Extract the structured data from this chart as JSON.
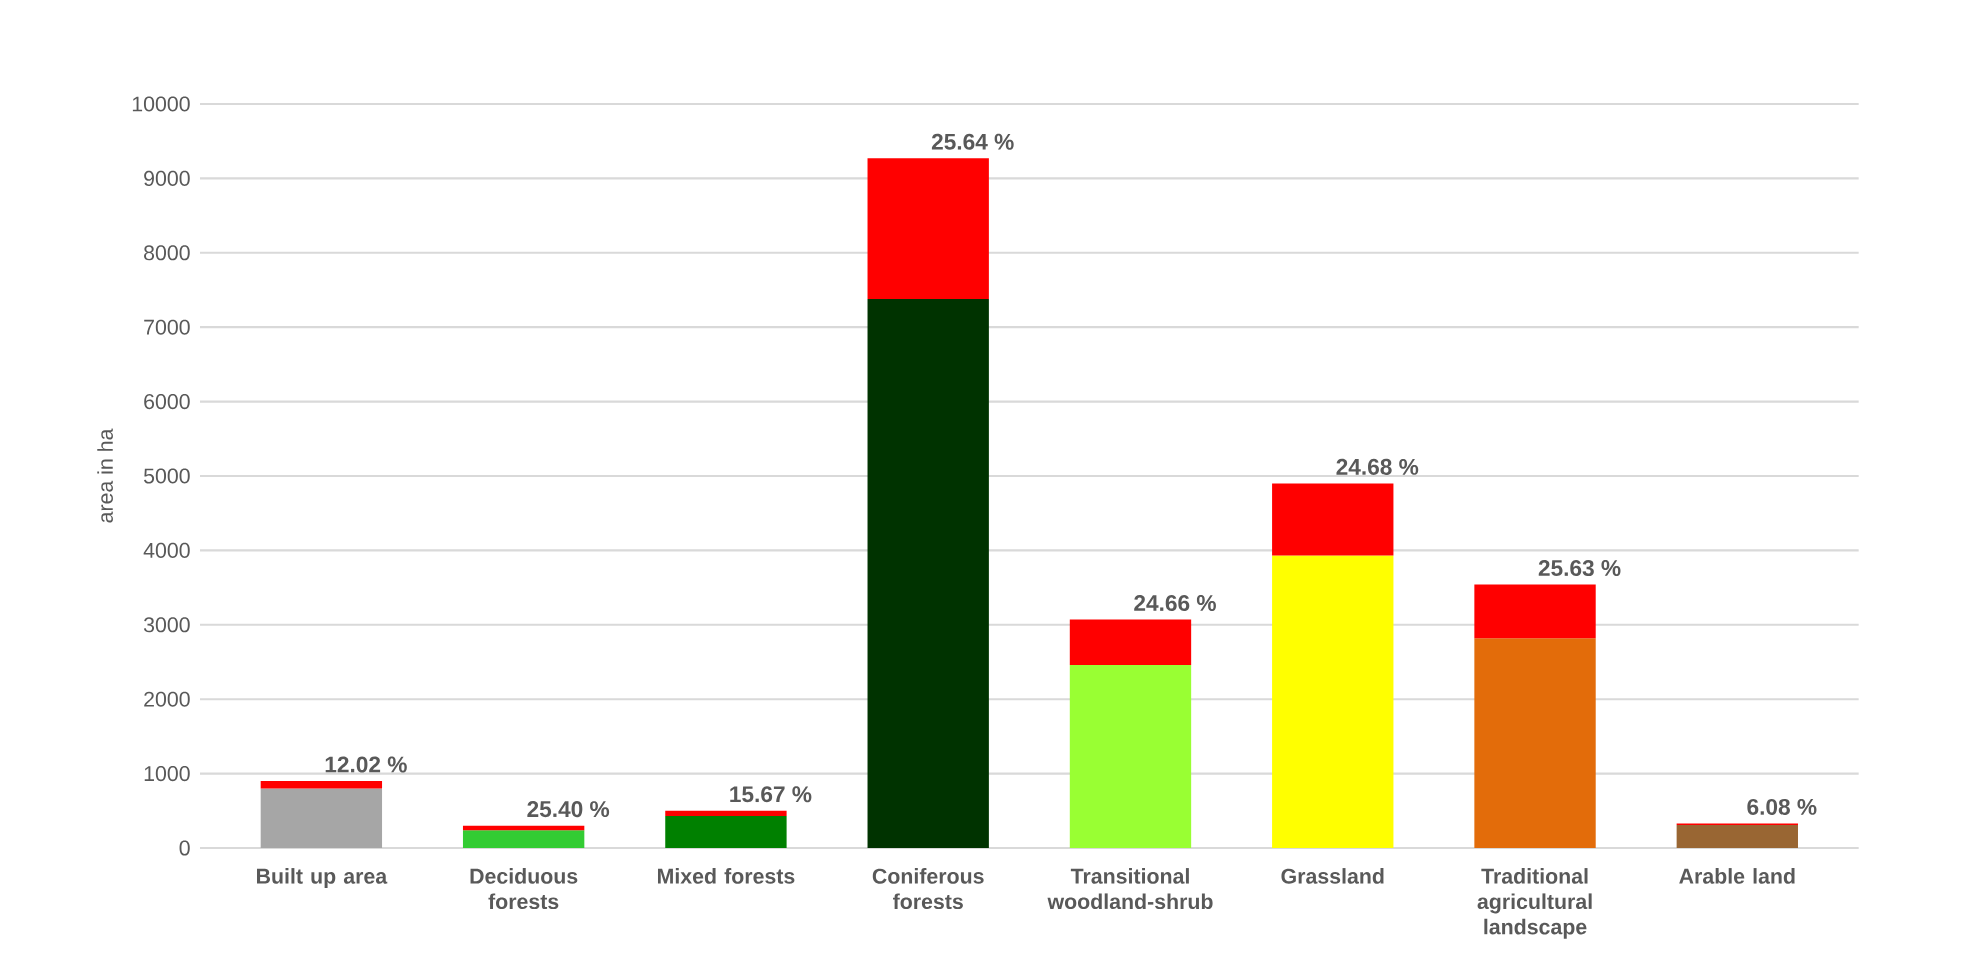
{
  "chart_data": {
    "type": "bar",
    "stacked": true,
    "ylabel": "area in ha",
    "categories": [
      "Built up area",
      "Deciduous forests",
      "Mixed forests",
      "Coniferous forests",
      "Transitional woodland-shrub",
      "Grassland",
      "Traditional agricultural landscape",
      "Arable land"
    ],
    "series": [
      {
        "colors": [
          "#a6a6a6",
          "#33cc33",
          "#008000",
          "#003300",
          "#99ff33",
          "#ffff00",
          "#e36c0a",
          "#996633"
        ],
        "values": [
          800,
          240,
          430,
          7380,
          2460,
          3930,
          2820,
          310
        ]
      },
      {
        "color": "#ff0000",
        "values": [
          100,
          60,
          70,
          1890,
          610,
          970,
          720,
          20
        ]
      }
    ],
    "annotations": [
      {
        "text": "12.02 %",
        "x": "Built up area",
        "y": 900
      },
      {
        "text": "25.40 %",
        "x": "Deciduous forests",
        "y": 300
      },
      {
        "text": "15.67 %",
        "x": "Mixed forests",
        "y": 500
      },
      {
        "text": "25.64 %",
        "x": "Coniferous forests",
        "y": 9270
      },
      {
        "text": "24.66 %",
        "x": "Transitional woodland-shrub",
        "y": 3070
      },
      {
        "text": "24.68 %",
        "x": "Grassland",
        "y": 4900
      },
      {
        "text": "25.63 %",
        "x": "Traditional agricultural landscape",
        "y": 3540
      },
      {
        "text": "6.08 %",
        "x": "Arable land",
        "y": 330
      }
    ],
    "ylim": [
      0,
      10000
    ],
    "yticks": [
      0,
      1000,
      2000,
      3000,
      4000,
      5000,
      6000,
      7000,
      8000,
      9000,
      10000
    ],
    "grid": "y"
  }
}
